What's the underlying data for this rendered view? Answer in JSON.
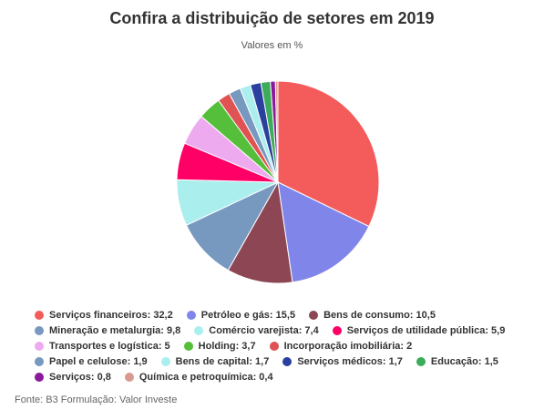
{
  "chart_data": {
    "type": "pie",
    "title": "Confira a distribuição de setores em 2019",
    "subtitle": "Valores em %",
    "slices": [
      {
        "label": "Serviços financeiros",
        "value": 32.2,
        "value_text": "32,2",
        "color": "#f45b5b"
      },
      {
        "label": "Petróleo e gás",
        "value": 15.5,
        "value_text": "15,5",
        "color": "#8085e9"
      },
      {
        "label": "Bens de consumo",
        "value": 10.5,
        "value_text": "10,5",
        "color": "#8d4654"
      },
      {
        "label": "Mineração e metalurgia",
        "value": 9.8,
        "value_text": "9,8",
        "color": "#7798bf"
      },
      {
        "label": "Comércio varejista",
        "value": 7.4,
        "value_text": "7,4",
        "color": "#aaeeee"
      },
      {
        "label": "Serviços de utilidade pública",
        "value": 5.9,
        "value_text": "5,9",
        "color": "#ff0066"
      },
      {
        "label": "Transportes e logística",
        "value": 5,
        "value_text": "5",
        "color": "#eeaaee"
      },
      {
        "label": "Holding",
        "value": 3.7,
        "value_text": "3,7",
        "color": "#55bf3b"
      },
      {
        "label": "Incorporação imobiliária",
        "value": 2,
        "value_text": "2",
        "color": "#df5353"
      },
      {
        "label": "Papel e celulose",
        "value": 1.9,
        "value_text": "1,9",
        "color": "#7798bf"
      },
      {
        "label": "Bens de capital",
        "value": 1.7,
        "value_text": "1,7",
        "color": "#aaeeee"
      },
      {
        "label": "Serviços médicos",
        "value": 1.7,
        "value_text": "1,7",
        "color": "#2b3f9e"
      },
      {
        "label": "Educação",
        "value": 1.5,
        "value_text": "1,5",
        "color": "#3cab5a"
      },
      {
        "label": "Serviços",
        "value": 0.8,
        "value_text": "0,8",
        "color": "#8a1a9b"
      },
      {
        "label": "Química e petroquímica",
        "value": 0.4,
        "value_text": "0,4",
        "color": "#d99a8f"
      }
    ],
    "legend_placement": "bottom"
  },
  "source": "Fonte: B3 Formulação: Valor Investe"
}
